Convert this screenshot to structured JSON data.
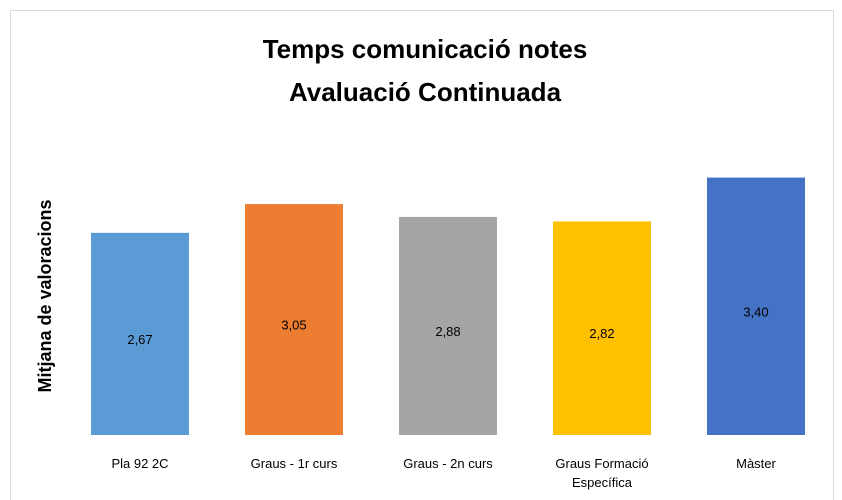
{
  "chart_data": {
    "type": "bar",
    "title": [
      "Temps comunicació notes",
      "Avaluació Continuada"
    ],
    "y_label": "Mitjana de valoracions",
    "categories": [
      "Pla 92 2C",
      "Graus - 1r curs",
      "Graus - 2n curs",
      "Graus Formació Específica",
      "Màster"
    ],
    "values": [
      2.67,
      3.05,
      2.88,
      2.82,
      3.4
    ],
    "value_labels": [
      "2,67",
      "3,05",
      "2,88",
      "2,82",
      "3,40"
    ],
    "colors": [
      "#5b9bd5",
      "#ed7d31",
      "#a5a5a5",
      "#ffc000",
      "#4472c4"
    ],
    "ylim": [
      0,
      3.5
    ],
    "grid": false
  }
}
